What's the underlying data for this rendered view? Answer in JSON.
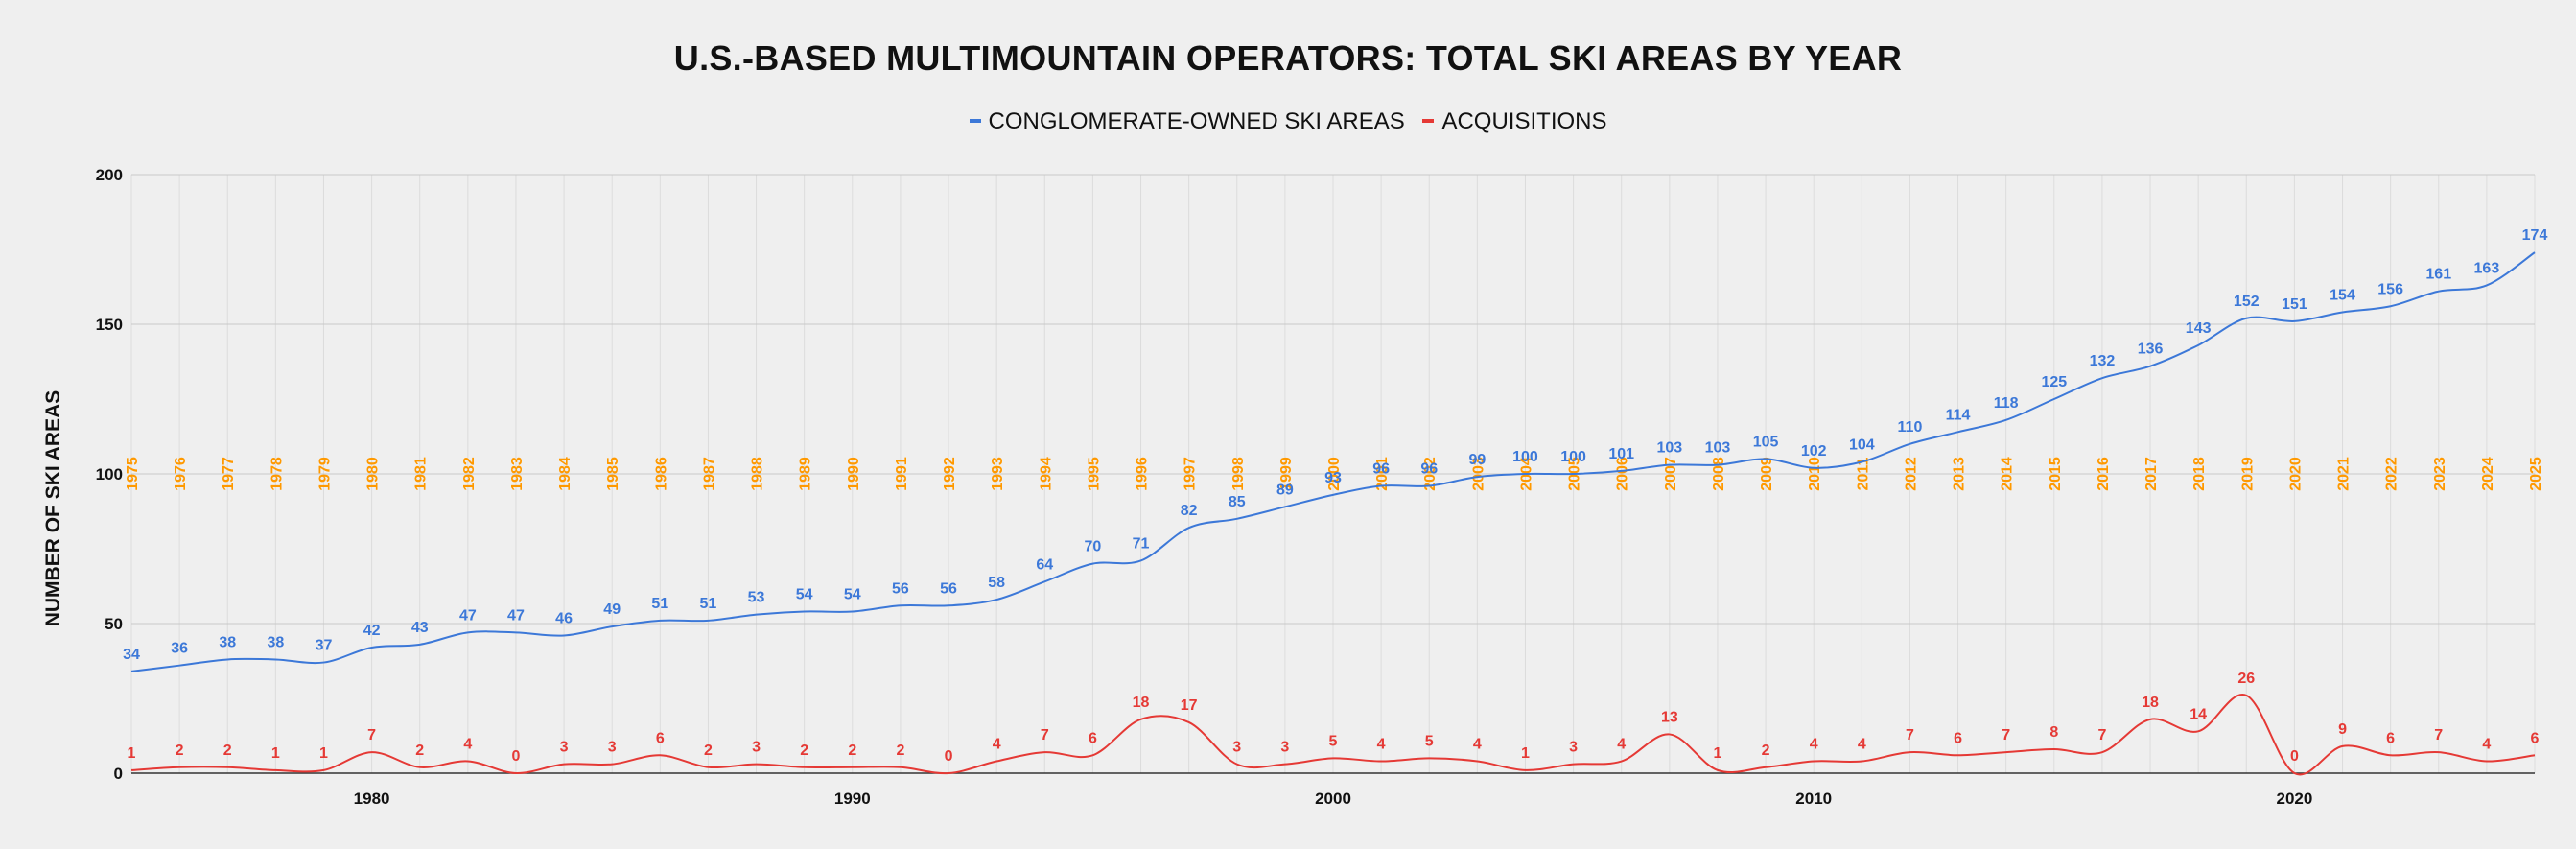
{
  "chart_data": {
    "type": "line",
    "title": "U.S.-BASED MULTIMOUNTAIN OPERATORS: TOTAL SKI AREAS BY YEAR",
    "ylabel": "NUMBER OF SKI AREAS",
    "xlabel": "",
    "ylim": [
      0,
      200
    ],
    "xlim": [
      1975,
      2025
    ],
    "grid": true,
    "legend_position": "top-center",
    "x_ticks": [
      "1980",
      "1990",
      "2000",
      "2010",
      "2020"
    ],
    "y_ticks": [
      "0",
      "50",
      "100",
      "150",
      "200"
    ],
    "x": [
      1975,
      1976,
      1977,
      1978,
      1979,
      1980,
      1981,
      1982,
      1983,
      1984,
      1985,
      1986,
      1987,
      1988,
      1989,
      1990,
      1991,
      1992,
      1993,
      1994,
      1995,
      1996,
      1997,
      1998,
      1999,
      2000,
      2001,
      2002,
      2003,
      2004,
      2005,
      2006,
      2007,
      2008,
      2009,
      2010,
      2011,
      2012,
      2013,
      2014,
      2015,
      2016,
      2017,
      2018,
      2019,
      2020,
      2021,
      2022,
      2023,
      2024,
      2025
    ],
    "year_labels": [
      "1975",
      "1976",
      "1977",
      "1978",
      "1979",
      "1980",
      "1981",
      "1982",
      "1983",
      "1984",
      "1985",
      "1986",
      "1987",
      "1988",
      "1989",
      "1990",
      "1991",
      "1992",
      "1993",
      "1994",
      "1995",
      "1996",
      "1997",
      "1998",
      "1999",
      "2000",
      "2001",
      "2002",
      "2003",
      "2004",
      "2005",
      "2006",
      "2007",
      "2008",
      "2009",
      "2010",
      "2011",
      "2012",
      "2013",
      "2014",
      "2015",
      "2016",
      "2017",
      "2018",
      "2019",
      "2020",
      "2021",
      "2022",
      "2023",
      "2024",
      "2025"
    ],
    "year_label_color": "#ff9900",
    "series": [
      {
        "name": "CONGLOMERATE-OWNED SKI AREAS",
        "color": "#3c78d8",
        "values": [
          34,
          36,
          38,
          38,
          37,
          42,
          43,
          47,
          47,
          46,
          49,
          51,
          51,
          53,
          54,
          54,
          56,
          56,
          58,
          64,
          70,
          71,
          82,
          85,
          89,
          93,
          96,
          96,
          99,
          100,
          100,
          101,
          103,
          103,
          105,
          102,
          104,
          110,
          114,
          118,
          125,
          132,
          136,
          143,
          152,
          151,
          154,
          156,
          161,
          163,
          174
        ]
      },
      {
        "name": "ACQUISITIONS",
        "color": "#e53935",
        "values": [
          1,
          2,
          2,
          1,
          1,
          7,
          2,
          4,
          0,
          3,
          3,
          6,
          2,
          3,
          2,
          2,
          2,
          0,
          4,
          7,
          6,
          18,
          17,
          3,
          3,
          5,
          4,
          5,
          4,
          1,
          3,
          4,
          13,
          1,
          2,
          4,
          4,
          7,
          6,
          7,
          8,
          7,
          18,
          14,
          26,
          0,
          9,
          6,
          7,
          4,
          6
        ]
      }
    ]
  }
}
